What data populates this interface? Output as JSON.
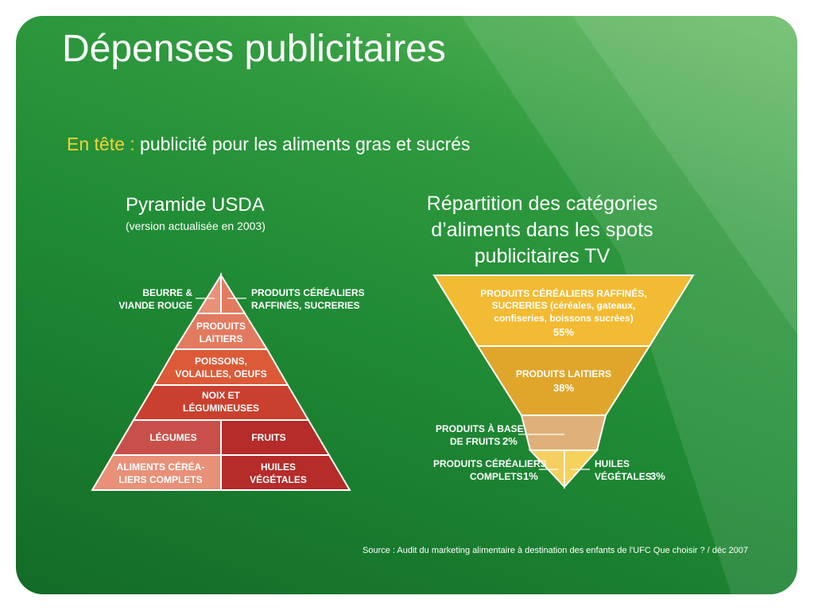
{
  "slide": {
    "title": "Dépenses publicitaires",
    "subtitle_lead": "En tête :",
    "subtitle_rest": " publicité pour les aliments gras et sucrés",
    "source": "Source : Audit du marketing alimentaire à destination des enfants de l'UFC Que choisir ? / déc 2007"
  },
  "pyramid": {
    "title": "Pyramide USDA",
    "subtitle": "(version actualisée en 2003)",
    "labels": {
      "butter_line1": "BEURRE &",
      "butter_line2": "VIANDE ROUGE",
      "refined_line1": "PRODUITS CÉRÉALIERS",
      "refined_line2": "RAFFINÉS, SUCRERIES",
      "dairy_line1": "PRODUITS",
      "dairy_line2": "LAITIERS",
      "fish_line1": "POISSONS,",
      "fish_line2": "VOLAILLES, OEUFS",
      "nuts_line1": "NOIX ET",
      "nuts_line2": "LÉGUMINEUSES",
      "vegetables": "LÉGUMES",
      "fruits": "FRUITS",
      "whole_line1": "ALIMENTS CÉRÉA-",
      "whole_line2": "LIERS COMPLETS",
      "oils_line1": "HUILES",
      "oils_line2": "VÉGÉTALES"
    },
    "colors": {
      "top": "#e89078",
      "dairy": "#e27a60",
      "fish": "#dc5a38",
      "nuts": "#c9402e",
      "vegetables": "#c9504a",
      "fruits": "#b52c2a",
      "whole": "#e89078",
      "oils": "#b52c2a"
    }
  },
  "tv": {
    "title": "Répartition des catégories d’aliments dans les spots publicitaires TV",
    "segments": [
      {
        "line1": "PRODUITS CÉRÉALIERS RAFFINÉS,",
        "line2": "SUCRERIES (céréales, gateaux,",
        "line3": "confiseries, boissons sucrées)",
        "pct": "55%",
        "value": 55,
        "color": "#f2bb33"
      },
      {
        "line1": "PRODUITS LAITIERS",
        "pct": "38%",
        "value": 38,
        "color": "#e0a62c"
      },
      {
        "line1": "PRODUITS À BASE",
        "line2": "DE FRUITS",
        "pct": "2%",
        "value": 2,
        "color": "#e0b07a"
      },
      {
        "line1": "PRODUITS CÉRÉALIERS",
        "line2": "COMPLETS",
        "pct": "1%",
        "value": 1,
        "color": "#f5cf60"
      },
      {
        "line1": "HUILES",
        "line2": "VÉGÉTALES",
        "pct": "3%",
        "value": 3,
        "color": "#f5d35a"
      }
    ]
  }
}
